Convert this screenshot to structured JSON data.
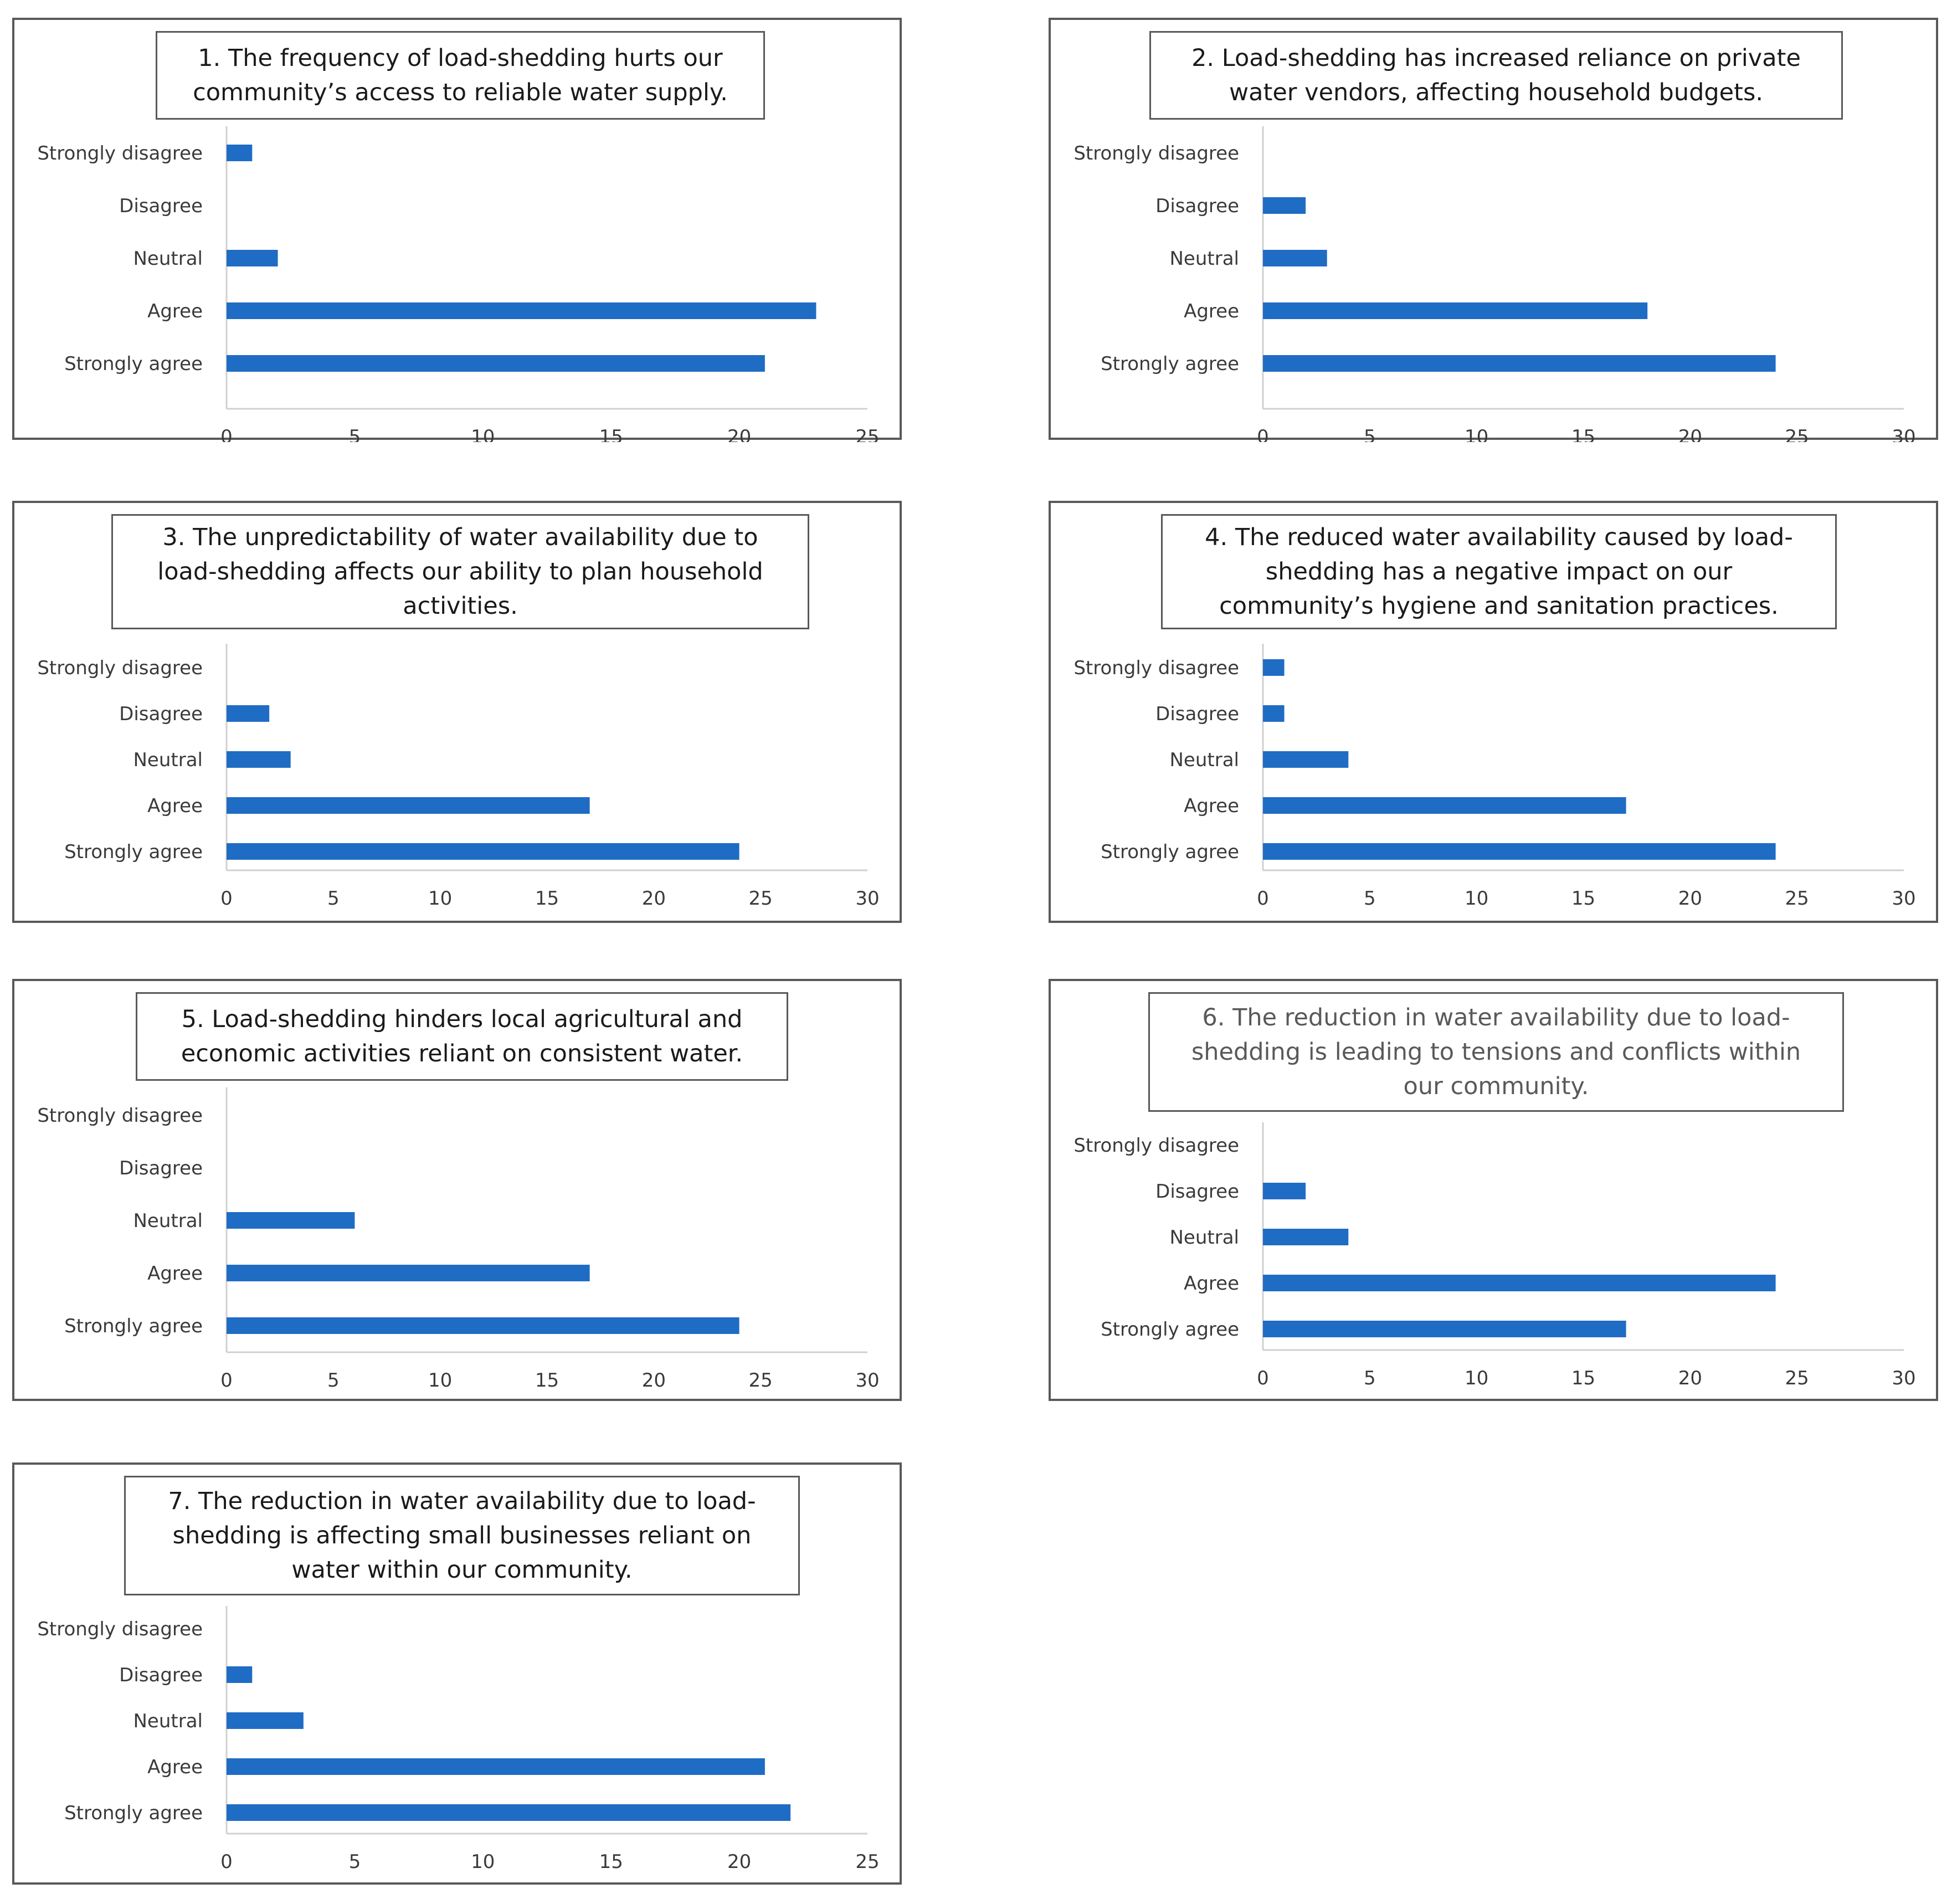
{
  "chart_data": [
    {
      "type": "bar",
      "orientation": "horizontal",
      "title_lines": [
        "1. The frequency of load-shedding hurts our",
        "community’s access to reliable water supply."
      ],
      "categories": [
        "Strongly disagree",
        "Disagree",
        "Neutral",
        "Agree",
        "Strongly agree"
      ],
      "values": [
        1,
        0,
        2,
        23,
        21
      ],
      "xlim": [
        0,
        25
      ],
      "xticks": [
        "0",
        "5",
        "10",
        "15",
        "20",
        "25"
      ],
      "bar_color": "#1f6cc4",
      "grid": false
    },
    {
      "type": "bar",
      "orientation": "horizontal",
      "title_lines": [
        "2. Load-shedding has increased reliance on private",
        "water vendors, affecting household budgets."
      ],
      "categories": [
        "Strongly disagree",
        "Disagree",
        "Neutral",
        "Agree",
        "Strongly agree"
      ],
      "values": [
        0,
        2,
        3,
        18,
        24
      ],
      "xlim": [
        0,
        30
      ],
      "xticks": [
        "0",
        "5",
        "10",
        "15",
        "20",
        "25",
        "30"
      ],
      "bar_color": "#1f6cc4",
      "grid": false
    },
    {
      "type": "bar",
      "orientation": "horizontal",
      "title_lines": [
        "3. The unpredictability of water availability due to",
        "load-shedding affects our ability to plan household",
        "activities."
      ],
      "categories": [
        "Strongly disagree",
        "Disagree",
        "Neutral",
        "Agree",
        "Strongly agree"
      ],
      "values": [
        0,
        2,
        3,
        17,
        24
      ],
      "xlim": [
        0,
        30
      ],
      "xticks": [
        "0",
        "5",
        "10",
        "15",
        "20",
        "25",
        "30"
      ],
      "bar_color": "#1f6cc4",
      "grid": false
    },
    {
      "type": "bar",
      "orientation": "horizontal",
      "title_lines": [
        "4. The reduced water availability caused by load-",
        "shedding has a negative impact on our",
        "community’s hygiene and sanitation practices."
      ],
      "categories": [
        "Strongly disagree",
        "Disagree",
        "Neutral",
        "Agree",
        "Strongly agree"
      ],
      "values": [
        1,
        1,
        4,
        17,
        24
      ],
      "xlim": [
        0,
        30
      ],
      "xticks": [
        "0",
        "5",
        "10",
        "15",
        "20",
        "25",
        "30"
      ],
      "bar_color": "#1f6cc4",
      "grid": false
    },
    {
      "type": "bar",
      "orientation": "horizontal",
      "title_lines": [
        "5. Load-shedding hinders local agricultural and",
        "economic activities reliant on consistent water."
      ],
      "categories": [
        "Strongly disagree",
        "Disagree",
        "Neutral",
        "Agree",
        "Strongly agree"
      ],
      "values": [
        0,
        0,
        6,
        17,
        24
      ],
      "xlim": [
        0,
        30
      ],
      "xticks": [
        "0",
        "5",
        "10",
        "15",
        "20",
        "25",
        "30"
      ],
      "bar_color": "#1f6cc4",
      "grid": false
    },
    {
      "type": "bar",
      "orientation": "horizontal",
      "title_lines": [
        "6. The reduction in water availability due to load-",
        "shedding is leading to tensions and conflicts within",
        "our community."
      ],
      "title_color": "#595959",
      "categories": [
        "Strongly disagree",
        "Disagree",
        "Neutral",
        "Agree",
        "Strongly agree"
      ],
      "values": [
        0,
        2,
        4,
        24,
        17
      ],
      "xlim": [
        0,
        30
      ],
      "xticks": [
        "0",
        "5",
        "10",
        "15",
        "20",
        "25",
        "30"
      ],
      "bar_color": "#1f6cc4",
      "grid": false
    },
    {
      "type": "bar",
      "orientation": "horizontal",
      "title_lines": [
        "7. The reduction in water availability due to load-",
        "shedding is affecting small businesses reliant on",
        "water within our community."
      ],
      "categories": [
        "Strongly disagree",
        "Disagree",
        "Neutral",
        "Agree",
        "Strongly agree"
      ],
      "values": [
        0,
        1,
        3,
        21,
        22
      ],
      "xlim": [
        0,
        25
      ],
      "xticks": [
        "0",
        "5",
        "10",
        "15",
        "20",
        "25"
      ],
      "bar_color": "#1f6cc4",
      "grid": false
    }
  ]
}
